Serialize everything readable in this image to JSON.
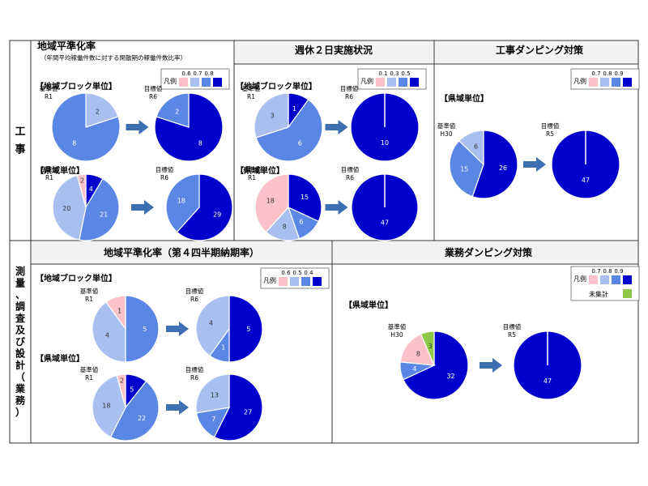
{
  "colors": {
    "pink": "#fbc3c9",
    "light_blue": "#a9bff0",
    "mid_blue": "#5a86e6",
    "dark_blue": "#0000cc",
    "green": "#8ec847",
    "arrow": "#3d6fb3",
    "header_bg": "#f2f2f2",
    "border": "#333333"
  },
  "sections": {
    "construction": "工事",
    "survey": "測量、調査及び設計（業務）"
  },
  "panels": {
    "p1": {
      "title": "地域平準化率",
      "subtitle": "（年間平均稼働件数に対する閑散期の稼働件数比率）"
    },
    "p2": {
      "title": "週休２日実施状況"
    },
    "p3": {
      "title": "工事ダンピング対策"
    },
    "p4": {
      "title": "地域平準化率（第４四半期納期率）"
    },
    "p5": {
      "title": "業務ダンピング対策"
    }
  },
  "legends": {
    "p1": {
      "label": "凡例",
      "values": [
        "0.6",
        "0.7",
        "0.8"
      ]
    },
    "p2": {
      "label": "凡例",
      "values": [
        "0.1",
        "0.3",
        "0.5"
      ]
    },
    "p3": {
      "label": "凡例",
      "values": [
        "0.7",
        "0.8",
        "0.9"
      ]
    },
    "p4": {
      "label": "凡例",
      "values": [
        "0.6",
        "0.5",
        "0.4"
      ]
    },
    "p5": {
      "label": "凡例",
      "values": [
        "0.7",
        "0.8",
        "0.9"
      ],
      "extra": "未集計"
    }
  },
  "group_labels": {
    "block": "【地域ブロック単位】",
    "pref": "【県域単位】"
  },
  "chart_data": [
    {
      "type": "pie",
      "panel": "p1",
      "group": "【地域ブロック単位】",
      "pies": [
        {
          "label": "基準値\nR1",
          "slices": [
            {
              "value": 2,
              "color": "light_blue"
            },
            {
              "value": 8,
              "color": "mid_blue"
            }
          ]
        },
        {
          "label": "目標値\nR6",
          "slices": [
            {
              "value": 8,
              "color": "dark_blue"
            },
            {
              "value": 2,
              "color": "mid_blue"
            }
          ]
        }
      ]
    },
    {
      "type": "pie",
      "panel": "p1",
      "group": "【県域単位】",
      "pies": [
        {
          "label": "基準値\nR1",
          "slices": [
            {
              "value": 4,
              "color": "dark_blue"
            },
            {
              "value": 21,
              "color": "mid_blue"
            },
            {
              "value": 20,
              "color": "light_blue"
            },
            {
              "value": 2,
              "color": "pink"
            }
          ]
        },
        {
          "label": "目標値\nR6",
          "slices": [
            {
              "value": 29,
              "color": "dark_blue"
            },
            {
              "value": 18,
              "color": "mid_blue"
            }
          ]
        }
      ]
    },
    {
      "type": "pie",
      "panel": "p2",
      "group": "【地域ブロック単位】",
      "pies": [
        {
          "label": "基準値\nR1",
          "slices": [
            {
              "value": 1,
              "color": "dark_blue"
            },
            {
              "value": 6,
              "color": "mid_blue"
            },
            {
              "value": 3,
              "color": "light_blue"
            }
          ]
        },
        {
          "label": "目標値\nR6",
          "slices": [
            {
              "value": 10,
              "color": "dark_blue"
            }
          ]
        }
      ]
    },
    {
      "type": "pie",
      "panel": "p2",
      "group": "【県域単位】",
      "pies": [
        {
          "label": "基準値\nR1",
          "slices": [
            {
              "value": 15,
              "color": "dark_blue"
            },
            {
              "value": 6,
              "color": "mid_blue"
            },
            {
              "value": 8,
              "color": "light_blue"
            },
            {
              "value": 18,
              "color": "pink"
            }
          ]
        },
        {
          "label": "目標値\nR6",
          "slices": [
            {
              "value": 47,
              "color": "dark_blue"
            }
          ]
        }
      ]
    },
    {
      "type": "pie",
      "panel": "p3",
      "group": "【県域単位】",
      "pies": [
        {
          "label": "基準値\nH30",
          "slices": [
            {
              "value": 26,
              "color": "dark_blue"
            },
            {
              "value": 15,
              "color": "mid_blue"
            },
            {
              "value": 6,
              "color": "light_blue"
            }
          ]
        },
        {
          "label": "目標値\nR5",
          "slices": [
            {
              "value": 47,
              "color": "dark_blue"
            }
          ]
        }
      ]
    },
    {
      "type": "pie",
      "panel": "p4",
      "group": "【地域ブロック単位】",
      "pies": [
        {
          "label": "基準値\nR1",
          "slices": [
            {
              "value": 5,
              "color": "mid_blue"
            },
            {
              "value": 4,
              "color": "light_blue"
            },
            {
              "value": 1,
              "color": "pink"
            }
          ]
        },
        {
          "label": "目標値\nR6",
          "slices": [
            {
              "value": 5,
              "color": "dark_blue"
            },
            {
              "value": 1,
              "color": "mid_blue"
            },
            {
              "value": 4,
              "color": "light_blue"
            }
          ]
        }
      ]
    },
    {
      "type": "pie",
      "panel": "p4",
      "group": "【県域単位】",
      "pies": [
        {
          "label": "基準値\nR1",
          "slices": [
            {
              "value": 5,
              "color": "dark_blue"
            },
            {
              "value": 22,
              "color": "mid_blue"
            },
            {
              "value": 18,
              "color": "light_blue"
            },
            {
              "value": 2,
              "color": "pink"
            }
          ]
        },
        {
          "label": "目標値\nR6",
          "slices": [
            {
              "value": 27,
              "color": "dark_blue"
            },
            {
              "value": 7,
              "color": "mid_blue"
            },
            {
              "value": 13,
              "color": "light_blue"
            }
          ]
        }
      ]
    },
    {
      "type": "pie",
      "panel": "p5",
      "group": "【県域単位】",
      "pies": [
        {
          "label": "基準値\nH30",
          "slices": [
            {
              "value": 32,
              "color": "dark_blue"
            },
            {
              "value": 4,
              "color": "mid_blue"
            },
            {
              "value": 8,
              "color": "pink"
            },
            {
              "value": 3,
              "color": "green"
            }
          ]
        },
        {
          "label": "目標値\nR5",
          "slices": [
            {
              "value": 47,
              "color": "dark_blue"
            }
          ]
        }
      ]
    }
  ]
}
